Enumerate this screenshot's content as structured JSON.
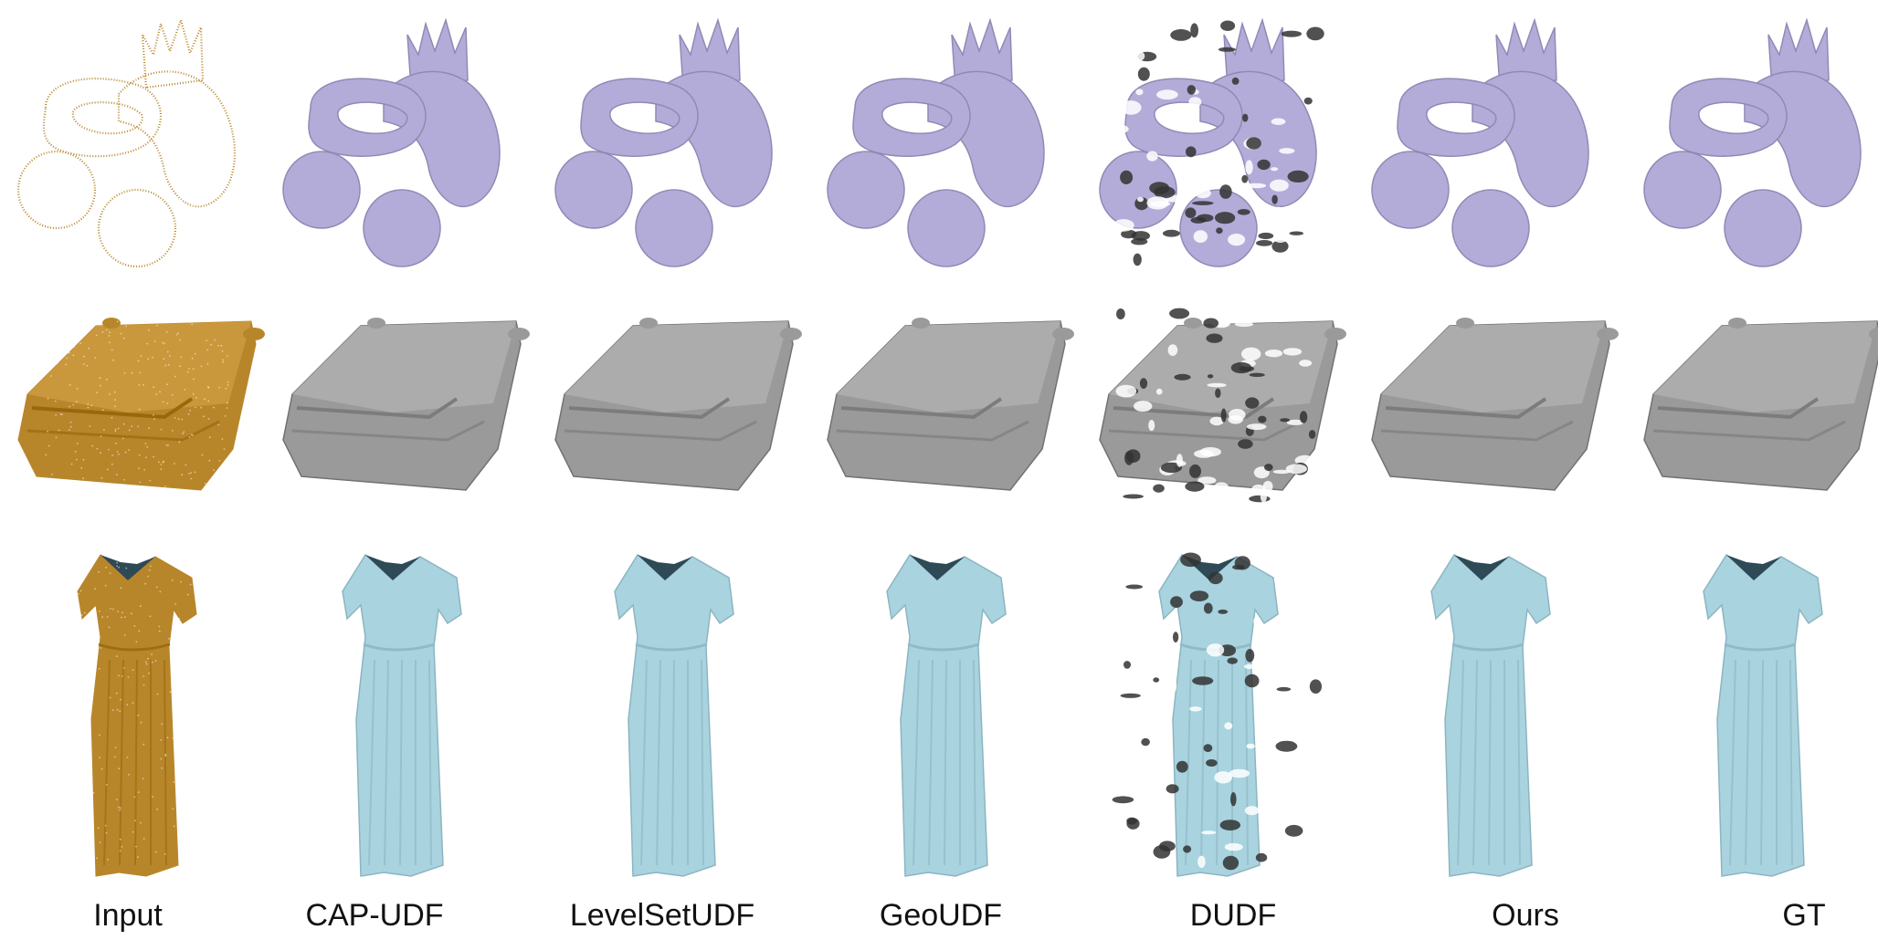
{
  "figure": {
    "columns": [
      "Input",
      "CAP-UDF",
      "LevelSetUDF",
      "GeoUDF",
      "DUDF",
      "Ours",
      "GT"
    ],
    "rows": [
      {
        "object": "toy",
        "kind": [
          "point-cloud",
          "mesh",
          "mesh",
          "mesh",
          "mesh-fragmented",
          "mesh",
          "mesh"
        ]
      },
      {
        "object": "car",
        "kind": [
          "point-cloud",
          "mesh",
          "mesh",
          "mesh",
          "mesh-fragmented",
          "mesh",
          "mesh"
        ]
      },
      {
        "object": "dress",
        "kind": [
          "point-cloud",
          "mesh",
          "mesh",
          "mesh",
          "mesh-fragmented",
          "mesh",
          "mesh"
        ]
      }
    ],
    "colors": {
      "point_cloud": "#b8862a",
      "toy_mesh": "#b4acd8",
      "car_mesh": "#9a9a9a",
      "dress_mesh": "#a9d3df"
    }
  }
}
